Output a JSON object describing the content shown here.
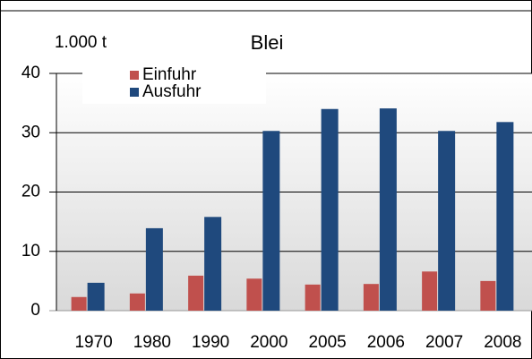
{
  "chart_data": {
    "type": "bar",
    "title": "Blei",
    "y_unit": "1.000 t",
    "categories": [
      "1970",
      "1980",
      "1990",
      "2000",
      "2005",
      "2006",
      "2007",
      "2008"
    ],
    "series": [
      {
        "name": "Einfuhr",
        "color": "#c0504d",
        "values": [
          2.3,
          2.9,
          5.9,
          5.4,
          4.4,
          4.5,
          6.6,
          5.0
        ]
      },
      {
        "name": "Ausfuhr",
        "color": "#1f497d",
        "values": [
          4.7,
          13.9,
          15.8,
          30.3,
          34.0,
          34.1,
          30.3,
          31.8
        ]
      }
    ],
    "ylim": [
      0,
      40
    ],
    "yticks": [
      0,
      10,
      20,
      30,
      40
    ],
    "grid": true,
    "legend": "upper left"
  }
}
